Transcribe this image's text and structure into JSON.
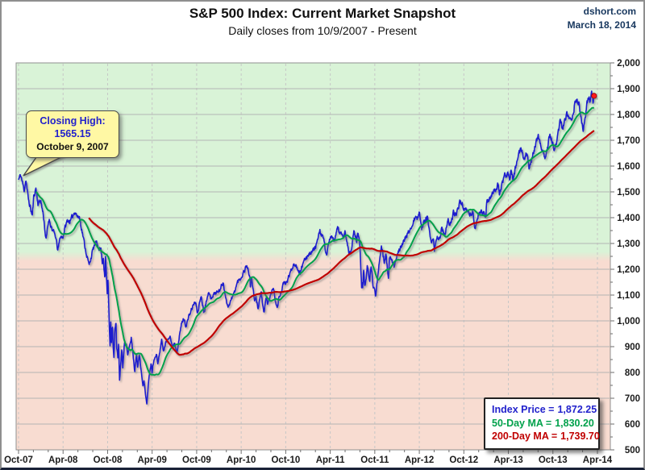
{
  "header": {
    "title": "S&P 500 Index: Current Market Snapshot",
    "subtitle": "Daily closes from 10/9/2007 - Present",
    "source": "dshort.com",
    "date": "March 18, 2014"
  },
  "callout": {
    "line1": "Closing High:",
    "line2": "1565.15",
    "line3": "October 9, 2007"
  },
  "legend": {
    "rows": [
      {
        "label": "Index Price =",
        "value": "1,872.25",
        "color": "#2222CC"
      },
      {
        "label": "50-Day MA =",
        "value": "1,830.20",
        "color": "#00A14B"
      },
      {
        "label": "200-Day MA =",
        "value": "1,739.70",
        "color": "#C00000"
      }
    ]
  },
  "chart_data": {
    "type": "line",
    "title": "S&P 500 Index: Current Market Snapshot",
    "subtitle": "Daily closes from 10/9/2007 - Present",
    "x_unit": "months since Oct-2007",
    "ylim": [
      500,
      2000
    ],
    "grid": {
      "h_color": "#b4b4b4",
      "v_color": "#c6c6c6",
      "tick_color": "#6e6e6e",
      "border_color": "#8f8f8f"
    },
    "background": {
      "above_color": "#d9f3d7",
      "below_color": "#f8dcd1",
      "boundary_value": 1250
    },
    "x_ticks": [
      {
        "m": 0,
        "label": "Oct-07"
      },
      {
        "m": 6,
        "label": "Apr-08"
      },
      {
        "m": 12,
        "label": "Oct-08"
      },
      {
        "m": 18,
        "label": "Apr-09"
      },
      {
        "m": 24,
        "label": "Oct-09"
      },
      {
        "m": 30,
        "label": "Apr-10"
      },
      {
        "m": 36,
        "label": "Oct-10"
      },
      {
        "m": 42,
        "label": "Apr-11"
      },
      {
        "m": 48,
        "label": "Oct-11"
      },
      {
        "m": 54,
        "label": "Apr-12"
      },
      {
        "m": 60,
        "label": "Oct-12"
      },
      {
        "m": 66,
        "label": "Apr-13"
      },
      {
        "m": 72,
        "label": "Oct-13"
      },
      {
        "m": 78,
        "label": "Apr-14"
      }
    ],
    "y_ticks": [
      {
        "v": 2000,
        "label": "2,000"
      },
      {
        "v": 1900,
        "label": "1,900"
      },
      {
        "v": 1800,
        "label": "1,800"
      },
      {
        "v": 1700,
        "label": "1,700"
      },
      {
        "v": 1600,
        "label": "1,600"
      },
      {
        "v": 1500,
        "label": "1,500"
      },
      {
        "v": 1400,
        "label": "1,400"
      },
      {
        "v": 1300,
        "label": "1,300"
      },
      {
        "v": 1200,
        "label": "1,200"
      },
      {
        "v": 1100,
        "label": "1,100"
      },
      {
        "v": 1000,
        "label": "1,000"
      },
      {
        "v": 900,
        "label": "900"
      },
      {
        "v": 800,
        "label": "800"
      },
      {
        "v": 700,
        "label": "700"
      },
      {
        "v": 600,
        "label": "600"
      },
      {
        "v": 500,
        "label": "500"
      }
    ],
    "series": [
      {
        "name": "S&P 500 Index (daily closes)",
        "color": "#1B1BCE",
        "width": 1.6,
        "anchors": [
          [
            0,
            1547
          ],
          [
            0.3,
            1565
          ],
          [
            0.75,
            1506
          ],
          [
            1,
            1549
          ],
          [
            1.3,
            1474
          ],
          [
            1.85,
            1407
          ],
          [
            2.05,
            1481
          ],
          [
            2.35,
            1516
          ],
          [
            2.6,
            1454
          ],
          [
            3,
            1468
          ],
          [
            3.1,
            1447
          ],
          [
            3.35,
            1411
          ],
          [
            3.7,
            1310
          ],
          [
            4,
            1378
          ],
          [
            4.1,
            1395
          ],
          [
            4.6,
            1349
          ],
          [
            4.95,
            1331
          ],
          [
            5.3,
            1273
          ],
          [
            5.65,
            1329
          ],
          [
            5.95,
            1323
          ],
          [
            6.3,
            1365
          ],
          [
            6.6,
            1390
          ],
          [
            7,
            1386
          ],
          [
            7.6,
            1426
          ],
          [
            8,
            1400
          ],
          [
            8.2,
            1404
          ],
          [
            9,
            1280
          ],
          [
            9.5,
            1215
          ],
          [
            9.95,
            1267
          ],
          [
            10.35,
            1305
          ],
          [
            10.9,
            1283
          ],
          [
            11.1,
            1277
          ],
          [
            11.3,
            1224
          ],
          [
            11.42,
            1252
          ],
          [
            11.55,
            1193
          ],
          [
            11.65,
            1156
          ],
          [
            11.72,
            1255
          ],
          [
            11.95,
            1106
          ],
          [
            12.05,
            1161
          ],
          [
            12.12,
            1099
          ],
          [
            12.22,
            996
          ],
          [
            12.32,
            899
          ],
          [
            12.42,
            1003
          ],
          [
            12.5,
            908
          ],
          [
            12.56,
            946
          ],
          [
            12.65,
            985
          ],
          [
            12.75,
            897
          ],
          [
            12.87,
            849
          ],
          [
            12.93,
            941
          ],
          [
            13,
            969
          ],
          [
            13.13,
            1006
          ],
          [
            13.2,
            905
          ],
          [
            13.4,
            852
          ],
          [
            13.47,
            911
          ],
          [
            13.63,
            752
          ],
          [
            13.68,
            800
          ],
          [
            13.93,
            896
          ],
          [
            14.03,
            816
          ],
          [
            14.27,
            910
          ],
          [
            14.5,
            913
          ],
          [
            14.72,
            869
          ],
          [
            15,
            903
          ],
          [
            15.2,
            935
          ],
          [
            15.65,
            805
          ],
          [
            15.9,
            874
          ],
          [
            16.05,
            826
          ],
          [
            16.3,
            870
          ],
          [
            16.75,
            743
          ],
          [
            16.9,
            773
          ],
          [
            17.27,
            677
          ],
          [
            17.6,
            794
          ],
          [
            17.85,
            833
          ],
          [
            18,
            798
          ],
          [
            18.1,
            835
          ],
          [
            18.6,
            870
          ],
          [
            18.75,
            832
          ],
          [
            19,
            873
          ],
          [
            19.27,
            929
          ],
          [
            19.5,
            883
          ],
          [
            19.9,
            919
          ],
          [
            20.4,
            946
          ],
          [
            20.75,
            893
          ],
          [
            21,
            919
          ],
          [
            21.32,
            879
          ],
          [
            21.95,
            987
          ],
          [
            22.25,
            1010
          ],
          [
            22.55,
            980
          ],
          [
            23,
            1021
          ],
          [
            23.7,
            1072
          ],
          [
            24,
            1057
          ],
          [
            24.07,
            1025
          ],
          [
            24.6,
            1098
          ],
          [
            24.97,
            1036
          ],
          [
            25.1,
            1046
          ],
          [
            25.5,
            1110
          ],
          [
            25.9,
            1091
          ],
          [
            26.5,
            1108
          ],
          [
            27,
            1115
          ],
          [
            27.6,
            1150
          ],
          [
            28,
            1074
          ],
          [
            28.27,
            1057
          ],
          [
            29,
            1104
          ],
          [
            29.5,
            1150
          ],
          [
            30,
            1169
          ],
          [
            30.77,
            1217
          ],
          [
            31.18,
            1166
          ],
          [
            31.22,
            1128
          ],
          [
            31.4,
            1172
          ],
          [
            31.8,
            1074
          ],
          [
            32,
            1089
          ],
          [
            32.25,
            1050
          ],
          [
            32.7,
            1113
          ],
          [
            33.05,
            1023
          ],
          [
            33.4,
            1095
          ],
          [
            33.55,
            1065
          ],
          [
            34,
            1102
          ],
          [
            34.3,
            1128
          ],
          [
            34.85,
            1047
          ],
          [
            35.1,
            1090
          ],
          [
            35.8,
            1149
          ],
          [
            36,
            1141
          ],
          [
            36.5,
            1178
          ],
          [
            37.15,
            1226
          ],
          [
            37.95,
            1187
          ],
          [
            38.1,
            1206
          ],
          [
            39,
            1258
          ],
          [
            39.65,
            1272
          ],
          [
            40,
            1286
          ],
          [
            40.6,
            1343
          ],
          [
            41,
            1327
          ],
          [
            41.5,
            1257
          ],
          [
            42,
            1326
          ],
          [
            42.6,
            1305
          ],
          [
            42.95,
            1364
          ],
          [
            43.75,
            1317
          ],
          [
            44,
            1345
          ],
          [
            44.5,
            1265
          ],
          [
            44.85,
            1268
          ],
          [
            45.2,
            1353
          ],
          [
            45.55,
            1305
          ],
          [
            45.72,
            1345
          ],
          [
            46,
            1292
          ],
          [
            46.13,
            1200
          ],
          [
            46.25,
            1119
          ],
          [
            46.3,
            1173
          ],
          [
            46.35,
            1121
          ],
          [
            46.5,
            1204
          ],
          [
            46.63,
            1124
          ],
          [
            46.85,
            1159
          ],
          [
            46.97,
            1219
          ],
          [
            47.3,
            1154
          ],
          [
            47.5,
            1216
          ],
          [
            47.68,
            1167
          ],
          [
            47.75,
            1130
          ],
          [
            48,
            1131
          ],
          [
            48.1,
            1099
          ],
          [
            48.6,
            1225
          ],
          [
            48.88,
            1285
          ],
          [
            49.3,
            1229
          ],
          [
            49.5,
            1258
          ],
          [
            49.83,
            1159
          ],
          [
            50,
            1247
          ],
          [
            50.3,
            1234
          ],
          [
            50.62,
            1205
          ],
          [
            51,
            1258
          ],
          [
            51.55,
            1294
          ],
          [
            52,
            1312
          ],
          [
            52.95,
            1366
          ],
          [
            53.5,
            1403
          ],
          [
            53.72,
            1393
          ],
          [
            54.05,
            1419
          ],
          [
            54.32,
            1359
          ],
          [
            54.88,
            1403
          ],
          [
            55,
            1398
          ],
          [
            55.05,
            1406
          ],
          [
            55.62,
            1295
          ],
          [
            55.95,
            1310
          ],
          [
            56.03,
            1278
          ],
          [
            56.25,
            1315
          ],
          [
            56.6,
            1326
          ],
          [
            56.82,
            1314
          ],
          [
            56.97,
            1362
          ],
          [
            57.4,
            1335
          ],
          [
            57.9,
            1386
          ],
          [
            58.07,
            1365
          ],
          [
            58.6,
            1418
          ],
          [
            59,
            1407
          ],
          [
            59.45,
            1466
          ],
          [
            60,
            1441
          ],
          [
            60.75,
            1413
          ],
          [
            61,
            1412
          ],
          [
            61.2,
            1428
          ],
          [
            61.5,
            1353
          ],
          [
            62,
            1416
          ],
          [
            62.4,
            1428
          ],
          [
            62.9,
            1402
          ],
          [
            63,
            1426
          ],
          [
            63.07,
            1462
          ],
          [
            63.5,
            1472
          ],
          [
            64,
            1498
          ],
          [
            64.63,
            1531
          ],
          [
            64.83,
            1488
          ],
          [
            65,
            1515
          ],
          [
            65.5,
            1561
          ],
          [
            65.95,
            1569
          ],
          [
            66.17,
            1553
          ],
          [
            66.38,
            1593
          ],
          [
            66.6,
            1542
          ],
          [
            67,
            1598
          ],
          [
            67.7,
            1669
          ],
          [
            68,
            1631
          ],
          [
            68.57,
            1652
          ],
          [
            68.8,
            1573
          ],
          [
            69,
            1606
          ],
          [
            69.35,
            1652
          ],
          [
            69.75,
            1692
          ],
          [
            70.05,
            1710
          ],
          [
            70.9,
            1630
          ],
          [
            71.15,
            1655
          ],
          [
            71.6,
            1726
          ],
          [
            72,
            1682
          ],
          [
            72.25,
            1655
          ],
          [
            72.95,
            1772
          ],
          [
            73.3,
            1747
          ],
          [
            73.9,
            1807
          ],
          [
            74.45,
            1775
          ],
          [
            75,
            1848
          ],
          [
            75.5,
            1848
          ],
          [
            75.78,
            1790
          ],
          [
            76.1,
            1742
          ],
          [
            76.6,
            1840
          ],
          [
            77,
            1859
          ],
          [
            77.2,
            1878
          ],
          [
            77.45,
            1841
          ],
          [
            77.55,
            1872.25
          ]
        ]
      },
      {
        "name": "50-Day Moving Average",
        "color": "#00A14B",
        "width": 2,
        "type": "sma",
        "window": 50
      },
      {
        "name": "200-Day Moving Average",
        "color": "#C00000",
        "width": 2.2,
        "type": "sma",
        "window": 200
      }
    ],
    "last_point": {
      "m": 77.55,
      "value": 1872.25,
      "marker_color": "#FF1A1A"
    },
    "legend_position": "bottom-right",
    "annotation": {
      "text": "Closing High: 1565.15 October 9, 2007",
      "at": {
        "m": 0.3,
        "value": 1565.15
      }
    }
  }
}
